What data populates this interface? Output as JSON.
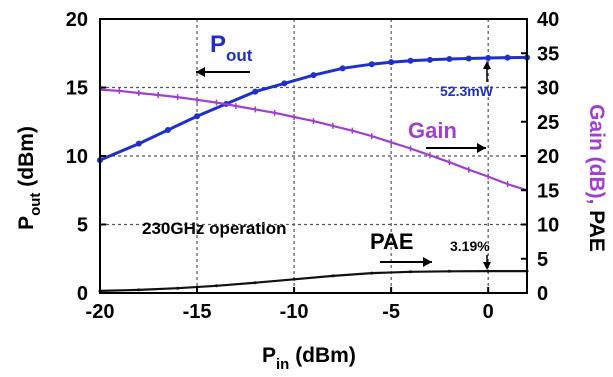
{
  "chart_data": {
    "type": "line",
    "xlabel_main": "P",
    "xlabel_sub": "in",
    "xlabel_unit": " (dBm)",
    "ylabel_main": "P",
    "ylabel_sub": "out",
    "ylabel_unit": " (dBm)",
    "y2label": "Gain (dB), PAE",
    "y2label_part1": "Gain (dB),",
    "y2label_part2": " PAE",
    "xlim": [
      -20,
      2
    ],
    "ylim": [
      0,
      20
    ],
    "y2lim": [
      0,
      40
    ],
    "grid": true,
    "x_ticks": [
      -20,
      -15,
      -10,
      -5,
      0
    ],
    "y_ticks": [
      0,
      5,
      10,
      15,
      20
    ],
    "y2_ticks": [
      0,
      5,
      10,
      15,
      20,
      25,
      30,
      35,
      40
    ],
    "colors": {
      "pout": "#1f2fcc",
      "gain": "#a040d0",
      "pae": "#111111",
      "grid": "#555555"
    },
    "series": [
      {
        "key": "pout",
        "axis": "left",
        "x": [
          -20,
          -18,
          -16.5,
          -15,
          -13.5,
          -12,
          -10.5,
          -9,
          -7.5,
          -6,
          -5,
          -4,
          -3,
          -2,
          -1,
          0,
          1,
          2
        ],
        "values": [
          9.7,
          10.9,
          11.9,
          12.9,
          13.8,
          14.7,
          15.3,
          15.9,
          16.4,
          16.7,
          16.85,
          16.95,
          17.02,
          17.08,
          17.12,
          17.15,
          17.18,
          17.19
        ]
      },
      {
        "key": "gain",
        "axis": "right",
        "x": [
          -20,
          -19,
          -18,
          -17,
          -16,
          -15,
          -14,
          -13,
          -12,
          -11,
          -10,
          -9,
          -8,
          -7,
          -6,
          -5,
          -4,
          -3,
          -2,
          -1,
          0,
          1,
          2
        ],
        "values": [
          29.7,
          29.5,
          29.2,
          28.9,
          28.6,
          28.2,
          27.8,
          27.3,
          26.8,
          26.3,
          25.7,
          25.1,
          24.4,
          23.7,
          22.9,
          22.0,
          21.1,
          20.1,
          19.1,
          18.0,
          17.0,
          15.9,
          15.0
        ]
      },
      {
        "key": "pae",
        "axis": "right",
        "x": [
          -20,
          -18,
          -16,
          -14,
          -12,
          -10,
          -8,
          -6,
          -4,
          -2,
          0,
          2
        ],
        "values": [
          0.3,
          0.45,
          0.7,
          1.05,
          1.5,
          2.0,
          2.5,
          2.9,
          3.1,
          3.17,
          3.19,
          3.19
        ]
      }
    ],
    "annotations": {
      "pout_label_main": "P",
      "pout_label_sub": "out",
      "gain_label": "Gain",
      "pae_label": "PAE",
      "peak_power": "52.3mW",
      "peak_pae": "3.19%",
      "operation": "230GHz operation"
    }
  }
}
